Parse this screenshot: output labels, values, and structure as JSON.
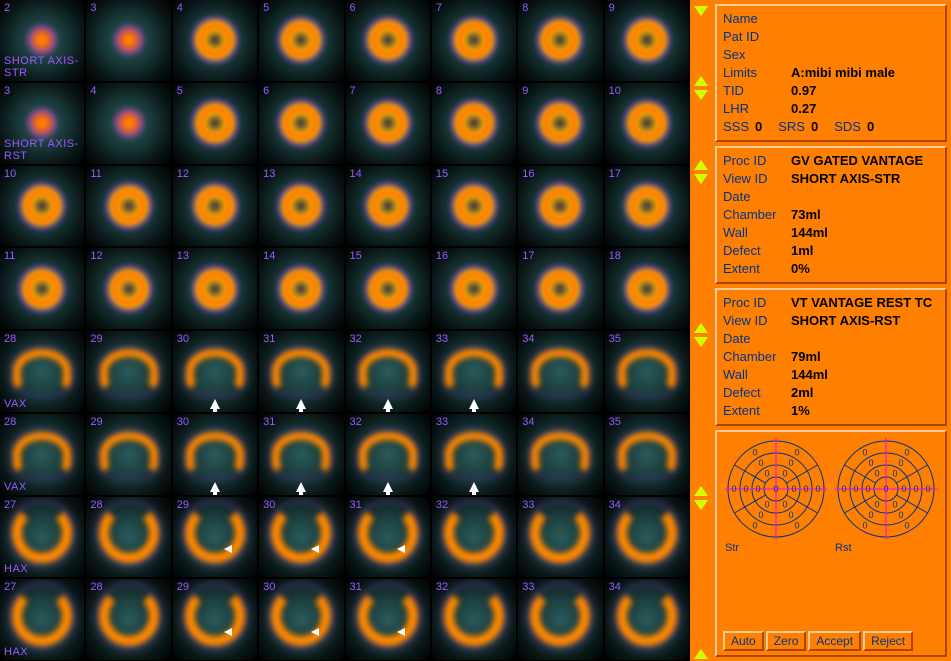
{
  "grid": {
    "rows": [
      {
        "label": "SHORT AXIS-STR",
        "style": "blob-to-ring",
        "nums": [
          2,
          3,
          4,
          5,
          6,
          7,
          8,
          9
        ]
      },
      {
        "label": "SHORT AXIS-RST",
        "style": "blob-to-ring",
        "nums": [
          3,
          4,
          5,
          6,
          7,
          8,
          9,
          10
        ]
      },
      {
        "label": "",
        "style": "ring",
        "nums": [
          10,
          11,
          12,
          13,
          14,
          15,
          16,
          17
        ]
      },
      {
        "label": "",
        "style": "ring",
        "nums": [
          11,
          12,
          13,
          14,
          15,
          16,
          17,
          18
        ]
      },
      {
        "label": "VAX",
        "style": "c",
        "nums": [
          28,
          29,
          30,
          31,
          32,
          33,
          34,
          35
        ],
        "arrows_up": [
          2,
          3,
          4,
          5
        ]
      },
      {
        "label": "VAX",
        "style": "c",
        "nums": [
          28,
          29,
          30,
          31,
          32,
          33,
          34,
          35
        ],
        "arrows_up": [
          2,
          3,
          4,
          5
        ]
      },
      {
        "label": "HAX",
        "style": "u",
        "nums": [
          27,
          28,
          29,
          30,
          31,
          32,
          33,
          34
        ],
        "arrows_left": [
          2,
          3,
          4
        ]
      },
      {
        "label": "HAX",
        "style": "u",
        "nums": [
          27,
          28,
          29,
          30,
          31,
          32,
          33,
          34
        ],
        "arrows_left": [
          2,
          3,
          4
        ]
      }
    ]
  },
  "patient_panel": {
    "name_key": "Name",
    "name_val": "",
    "patid_key": "Pat ID",
    "patid_val": "",
    "sex_key": "Sex",
    "sex_val": "",
    "limits_key": "Limits",
    "limits_val": "A:mibi mibi male",
    "tid_key": "TID",
    "tid_val": "0.97",
    "lhr_key": "LHR",
    "lhr_val": "0.27",
    "sss_key": "SSS",
    "sss_val": "0",
    "srs_key": "SRS",
    "srs_val": "0",
    "sds_key": "SDS",
    "sds_val": "0"
  },
  "proc_panel_1": {
    "procid_key": "Proc ID",
    "procid_val": "GV GATED VANTAGE",
    "viewid_key": "View ID",
    "viewid_val": "SHORT AXIS-STR",
    "date_key": "Date",
    "date_val": "",
    "chamber_key": "Chamber",
    "chamber_val": "73ml",
    "wall_key": "Wall",
    "wall_val": "144ml",
    "defect_key": "Defect",
    "defect_val": "1ml",
    "extent_key": "Extent",
    "extent_val": "0%"
  },
  "proc_panel_2": {
    "procid_key": "Proc ID",
    "procid_val": "VT VANTAGE REST TC",
    "viewid_key": "View ID",
    "viewid_val": "SHORT AXIS-RST",
    "date_key": "Date",
    "date_val": "",
    "chamber_key": "Chamber",
    "chamber_val": "79ml",
    "wall_key": "Wall",
    "wall_val": "144ml",
    "defect_key": "Defect",
    "defect_val": "2ml",
    "extent_key": "Extent",
    "extent_val": "1%"
  },
  "polar": {
    "left_label": "Str",
    "right_label": "Rst",
    "segment_value": "0",
    "ring_color": "#003388",
    "crosshair_color": "#ff00ff"
  },
  "buttons": {
    "auto": "Auto",
    "zero": "Zero",
    "accept": "Accept",
    "reject": "Reject"
  },
  "colors": {
    "frame": "#ff7f00",
    "key_text": "#003388",
    "val_text": "#000000",
    "marker": "#d1ff00"
  }
}
